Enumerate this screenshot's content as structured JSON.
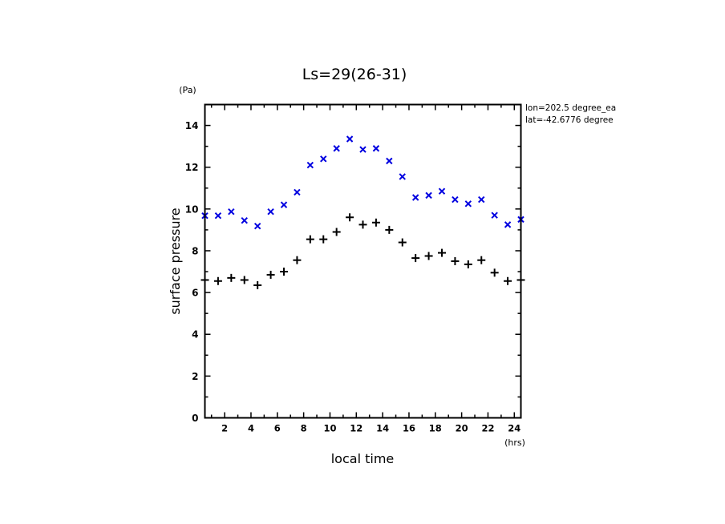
{
  "chart_data": {
    "type": "scatter",
    "title": "Ls=29(26-31)",
    "xlabel": "local time",
    "xunit": "(hrs)",
    "ylabel": "surface pressure",
    "yunit": "(Pa)",
    "xlim": [
      0.5,
      24.5
    ],
    "ylim": [
      0,
      15
    ],
    "xticks": [
      2,
      4,
      6,
      8,
      10,
      12,
      14,
      16,
      18,
      20,
      22,
      24
    ],
    "yticks": [
      0,
      2,
      4,
      6,
      8,
      10,
      12,
      14
    ],
    "annotations": [
      "lon=202.5 degree_ea",
      "lat=-42.6776 degree"
    ],
    "x": [
      0.5,
      1.5,
      2.5,
      3.5,
      4.5,
      5.5,
      6.5,
      7.5,
      8.5,
      9.5,
      10.5,
      11.5,
      12.5,
      13.5,
      14.5,
      15.5,
      16.5,
      17.5,
      18.5,
      19.5,
      20.5,
      21.5,
      22.5,
      23.5,
      24.5
    ],
    "series": [
      {
        "name": "blue x",
        "marker": "x",
        "color": "#0000e0",
        "values": [
          9.68,
          9.68,
          9.87,
          9.45,
          9.18,
          9.87,
          10.2,
          10.8,
          12.1,
          12.4,
          12.9,
          13.35,
          12.85,
          12.9,
          12.3,
          11.55,
          10.55,
          10.65,
          10.85,
          10.45,
          10.25,
          10.45,
          9.7,
          9.25,
          9.5
        ]
      },
      {
        "name": "black +",
        "marker": "+",
        "color": "#000000",
        "values": [
          6.6,
          6.55,
          6.7,
          6.6,
          6.35,
          6.85,
          7.0,
          7.55,
          8.55,
          8.55,
          8.9,
          9.6,
          9.25,
          9.35,
          9.0,
          8.4,
          7.65,
          7.75,
          7.9,
          7.5,
          7.35,
          7.55,
          6.95,
          6.55,
          6.6
        ]
      }
    ]
  }
}
